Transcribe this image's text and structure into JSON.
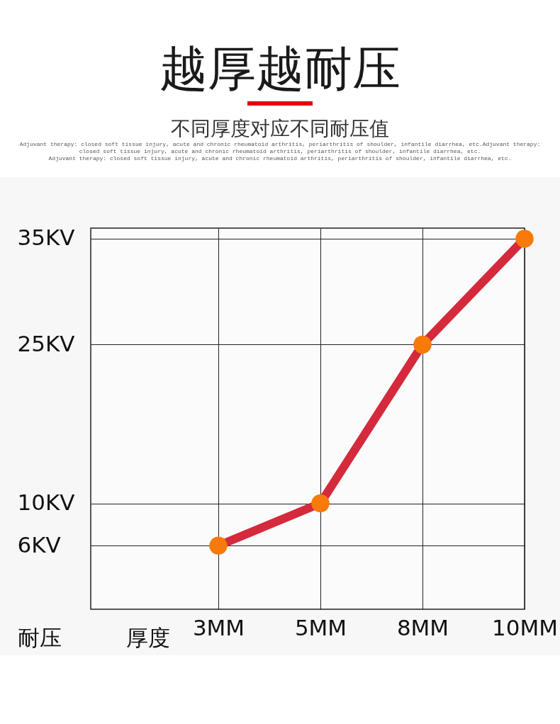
{
  "chart_data": {
    "type": "line",
    "title": "越厚越耐压",
    "subtitle": "不同厚度对应不同耐压值",
    "annotations": [
      "Adjuvant therapy: closed soft tissue injury, acute and chronic rheumatoid arthritis, periarthritis of shoulder, infantile diarrhea, etc.Adjuvant therapy:",
      "closed soft tissue injury, acute and chronic rheumatoid arthritis, periarthritis of shoulder, infantile diarrhea, etc.",
      "Adjuvant therapy: closed soft tissue injury, acute and chronic rheumatoid arthritis, periarthritis of shoulder, infantile diarrhea, etc."
    ],
    "xlabel": "厚度",
    "ylabel": "耐压",
    "categories": [
      "3MM",
      "5MM",
      "8MM",
      "10MM"
    ],
    "series": [
      {
        "color": "#d42a3c",
        "values": [
          6,
          10,
          25,
          35
        ]
      }
    ],
    "ylim": [
      0,
      36
    ],
    "yticks": [
      {
        "value": 6,
        "label": "6KV"
      },
      {
        "value": 10,
        "label": "10KV"
      },
      {
        "value": 25,
        "label": "25KV"
      },
      {
        "value": 35,
        "label": "35KV"
      }
    ],
    "grid": true,
    "marker": "circle",
    "line_style": "solid"
  }
}
